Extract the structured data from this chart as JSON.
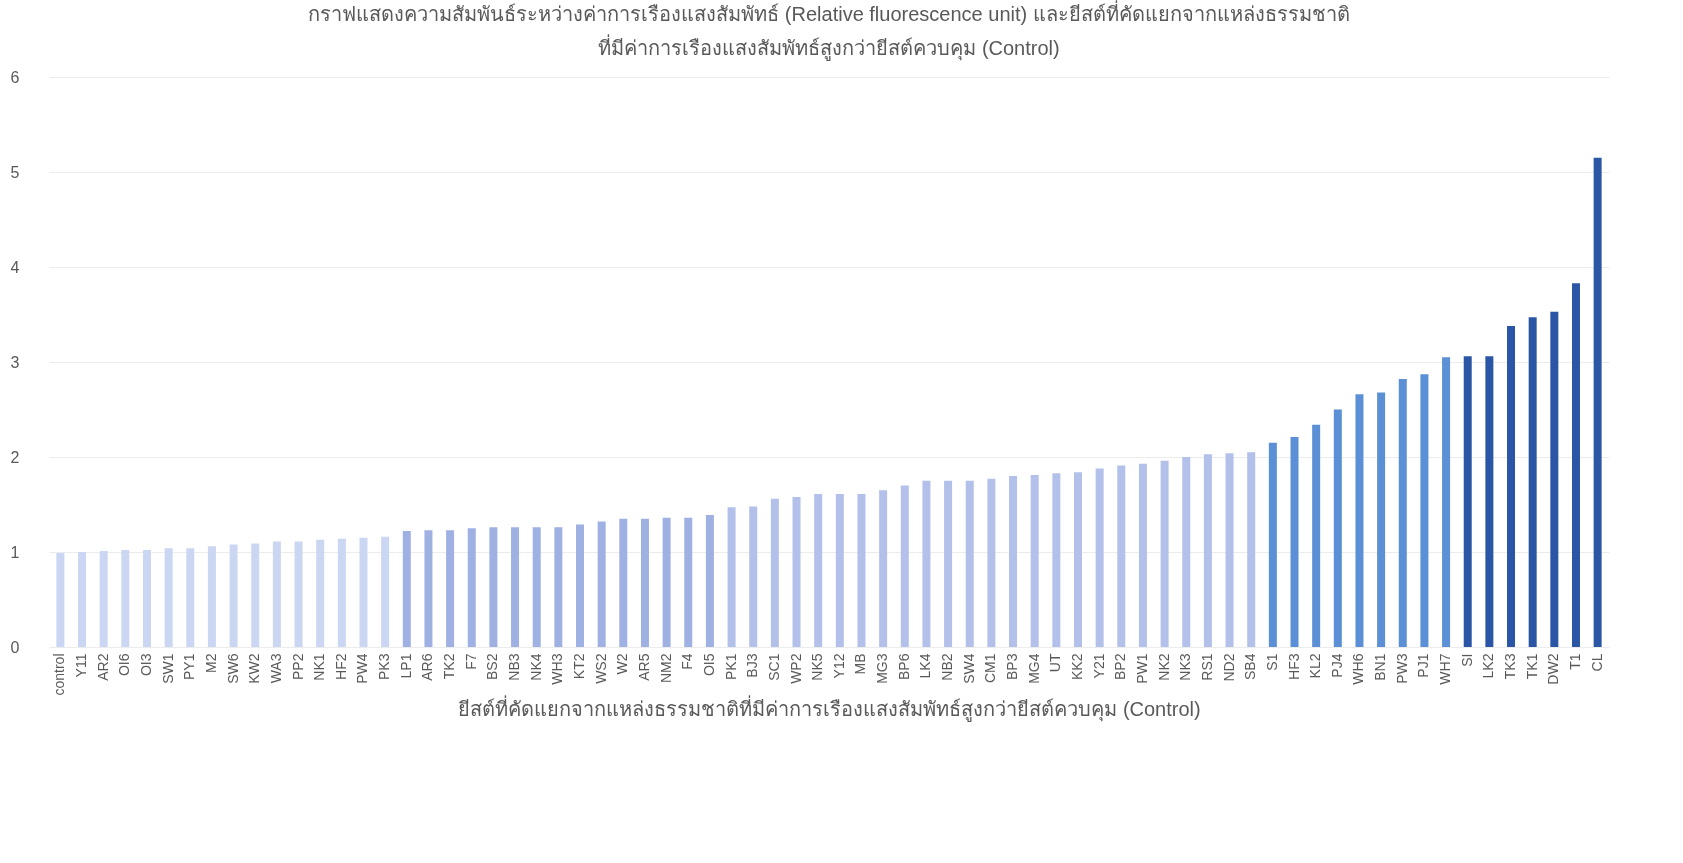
{
  "chart_data": {
    "type": "bar",
    "title": [
      "กราฟแสดงความสัมพันธ์ระหว่างค่าการเรืองแสงสัมพัทธ์ (Relative fluorescence unit) และยีสต์ที่คัดแยกจากแหล่งธรรมชาติ",
      "ที่มีค่าการเรืองแสงสัมพัทธ์สูงกว่ายีสต์ควบคุม (Control)"
    ],
    "xlabel": "ยีสต์ที่คัดแยกจากแหล่งธรรมชาติที่มีค่าการเรืองแสงสัมพัทธ์สูงกว่ายีสต์ควบคุม (Control)",
    "categories": [
      "control",
      "Y11",
      "AR2",
      "OI6",
      "OI3",
      "SW1",
      "PY1",
      "M2",
      "SW6",
      "KW2",
      "WA3",
      "PP2",
      "NK1",
      "HF2",
      "PW4",
      "PK3",
      "LP1",
      "AR6",
      "TK2",
      "F7",
      "BS2",
      "NB3",
      "NK4",
      "WH3",
      "KT2",
      "WS2",
      "W2",
      "AR5",
      "NM2",
      "F4",
      "OI5",
      "PK1",
      "BJ3",
      "SC1",
      "WP2",
      "NK5",
      "Y12",
      "MB",
      "MG3",
      "BP6",
      "LK4",
      "NB2",
      "SW4",
      "CM1",
      "BP3",
      "MG4",
      "UT",
      "KK2",
      "Y21",
      "BP2",
      "PW1",
      "NK2",
      "NK3",
      "RS1",
      "ND2",
      "SB4",
      "S1",
      "HF3",
      "KL2",
      "PJ4",
      "WH6",
      "BN1",
      "PW3",
      "PJ1",
      "WH7",
      "SI",
      "LK2",
      "TK3",
      "TK1",
      "DW2",
      "T1",
      "CL"
    ],
    "values": [
      0.99,
      1.0,
      1.01,
      1.02,
      1.02,
      1.04,
      1.04,
      1.06,
      1.08,
      1.09,
      1.11,
      1.11,
      1.13,
      1.14,
      1.15,
      1.16,
      1.22,
      1.23,
      1.23,
      1.25,
      1.26,
      1.26,
      1.26,
      1.26,
      1.29,
      1.32,
      1.35,
      1.35,
      1.36,
      1.36,
      1.39,
      1.47,
      1.48,
      1.56,
      1.58,
      1.61,
      1.61,
      1.61,
      1.65,
      1.7,
      1.75,
      1.75,
      1.75,
      1.77,
      1.8,
      1.81,
      1.83,
      1.84,
      1.88,
      1.91,
      1.93,
      1.96,
      2.0,
      2.03,
      2.04,
      2.05,
      2.15,
      2.21,
      2.34,
      2.5,
      2.66,
      2.68,
      2.82,
      2.87,
      3.05,
      3.06,
      3.06,
      3.38,
      3.47,
      3.53,
      3.83,
      5.15
    ],
    "colors": [
      "#cbd6f2",
      "#cbd6f2",
      "#cbd6f2",
      "#cbd6f2",
      "#cbd6f2",
      "#cbd6f2",
      "#cbd6f2",
      "#cbd6f2",
      "#cbd6f2",
      "#cbd6f2",
      "#cbd6f2",
      "#cbd6f2",
      "#cbd6f2",
      "#cbd6f2",
      "#cbd6f2",
      "#cbd6f2",
      "#9fb0e2",
      "#9fb0e2",
      "#9fb0e2",
      "#9fb0e2",
      "#9fb0e2",
      "#9fb0e2",
      "#9fb0e2",
      "#9fb0e2",
      "#9fb0e2",
      "#9fb0e2",
      "#9fb0e2",
      "#9fb0e2",
      "#9fb0e2",
      "#9fb0e2",
      "#9fb0e2",
      "#b2c0ea",
      "#b2c0ea",
      "#b2c0ea",
      "#b2c0ea",
      "#b2c0ea",
      "#b2c0ea",
      "#b2c0ea",
      "#b2c0ea",
      "#b2c0ea",
      "#b2c0ea",
      "#b2c0ea",
      "#b2c0ea",
      "#b2c0ea",
      "#b2c0ea",
      "#b2c0ea",
      "#b2c0ea",
      "#b2c0ea",
      "#b2c0ea",
      "#b2c0ea",
      "#b2c0ea",
      "#b2c0ea",
      "#b2c0ea",
      "#b2c0ea",
      "#b2c0ea",
      "#b2c0ea",
      "#5b8fd6",
      "#5b8fd6",
      "#5b8fd6",
      "#5b8fd6",
      "#5b8fd6",
      "#5b8fd6",
      "#5b8fd6",
      "#5b8fd6",
      "#5b8fd6",
      "#2b56a6",
      "#2b56a6",
      "#2b56a6",
      "#2b56a6",
      "#2b56a6",
      "#2b56a6",
      "#2b56a6"
    ],
    "ylim": [
      0,
      6
    ],
    "yticks": [
      0,
      1,
      2,
      3,
      4,
      5,
      6
    ],
    "grid": "y"
  }
}
